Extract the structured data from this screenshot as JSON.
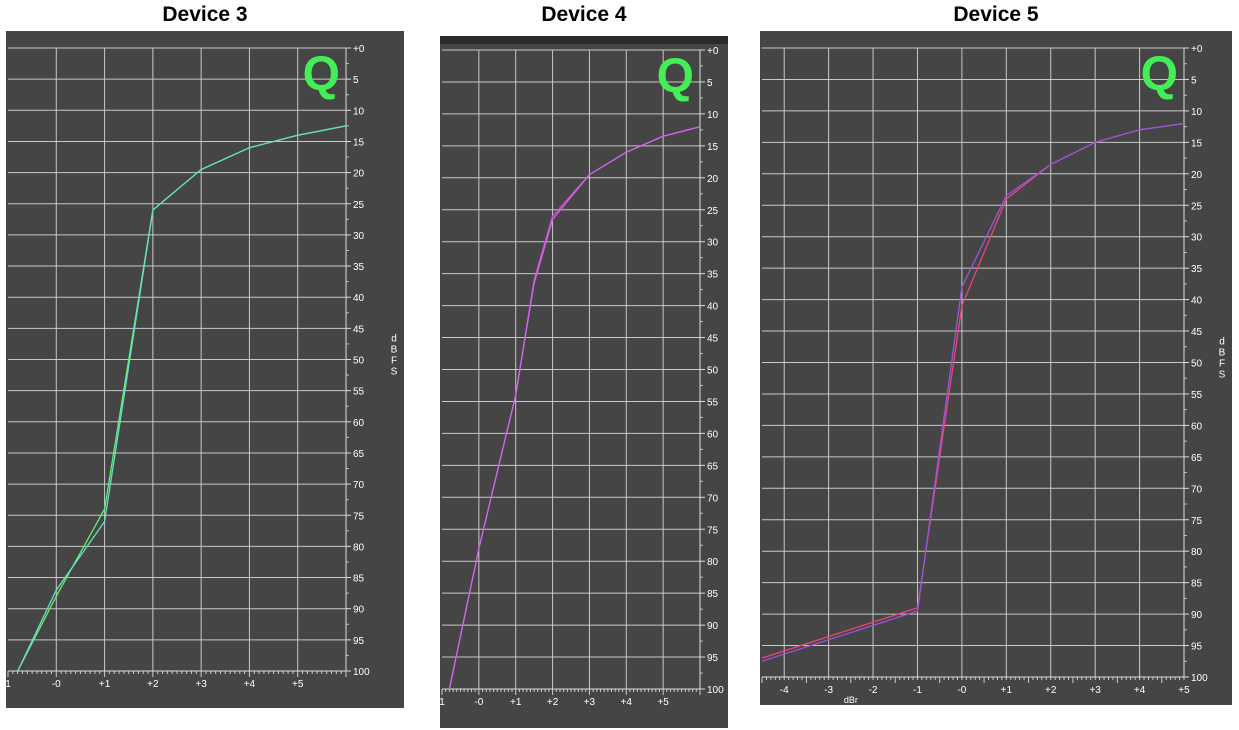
{
  "chart_data": [
    {
      "type": "line",
      "title": "Device 3",
      "ylabel": "dBFS",
      "xlabel": "",
      "x_ticks": [
        "1",
        "-0",
        "+1",
        "+2",
        "+3",
        "+4",
        "+5"
      ],
      "y_ticks": [
        "+0",
        "5",
        "10",
        "15",
        "20",
        "25",
        "30",
        "35",
        "40",
        "45",
        "50",
        "55",
        "60",
        "65",
        "70",
        "75",
        "80",
        "85",
        "90",
        "95",
        "100"
      ],
      "xlim": [
        -2,
        5
      ],
      "ylim": [
        0,
        100
      ],
      "grid": true,
      "logo": "Q",
      "logo_color": "#44ee55",
      "series": [
        {
          "color": "#66ee66",
          "x": [
            -1.8,
            -1,
            0,
            1,
            2,
            3,
            4,
            5
          ],
          "y": [
            100,
            88,
            74,
            26,
            19.5,
            16,
            14,
            12.5
          ]
        },
        {
          "color": "#66ddcc",
          "x": [
            -1.8,
            -1,
            0,
            1,
            2,
            3,
            4,
            5
          ],
          "y": [
            100,
            87,
            76,
            26,
            19.5,
            16,
            14,
            12.5
          ]
        }
      ]
    },
    {
      "type": "line",
      "title": "Device 4",
      "ylabel": "",
      "xlabel": "",
      "x_ticks": [
        "1",
        "-0",
        "+1",
        "+2",
        "+3",
        "+4",
        "+5"
      ],
      "y_ticks": [
        "+0",
        "5",
        "10",
        "15",
        "20",
        "25",
        "30",
        "35",
        "40",
        "45",
        "50",
        "55",
        "60",
        "65",
        "70",
        "75",
        "80",
        "85",
        "90",
        "95",
        "100"
      ],
      "xlim": [
        -2,
        5
      ],
      "ylim": [
        0,
        100
      ],
      "grid": true,
      "logo": "Q",
      "logo_color": "#44ee55",
      "series": [
        {
          "color": "#dd44cc",
          "x": [
            -1.8,
            -1,
            0,
            0.5,
            1,
            2,
            3,
            4,
            5
          ],
          "y": [
            100,
            78,
            54,
            36,
            26,
            19.5,
            16,
            13.5,
            12
          ]
        },
        {
          "color": "#cc66ee",
          "x": [
            -1.8,
            -1,
            0,
            0.5,
            1,
            2,
            3,
            4,
            5
          ],
          "y": [
            100,
            78,
            54,
            36.5,
            26.5,
            19.5,
            16,
            13.5,
            12
          ]
        }
      ]
    },
    {
      "type": "line",
      "title": "Device 5",
      "ylabel": "dBFS",
      "xlabel": "dBr",
      "x_ticks": [
        "-4",
        "-3",
        "-2",
        "-1",
        "-0",
        "+1",
        "+2",
        "+3",
        "+4",
        "+5"
      ],
      "y_ticks": [
        "+0",
        "5",
        "10",
        "15",
        "20",
        "25",
        "30",
        "35",
        "40",
        "45",
        "50",
        "55",
        "60",
        "65",
        "70",
        "75",
        "80",
        "85",
        "90",
        "95",
        "100"
      ],
      "xlim": [
        -4.5,
        5
      ],
      "ylim": [
        0,
        100
      ],
      "grid": true,
      "logo": "Q",
      "logo_color": "#44ee55",
      "series": [
        {
          "color": "#ee4477",
          "x": [
            -4.5,
            -1,
            0,
            1,
            2,
            3,
            4,
            5
          ],
          "y": [
            97,
            89,
            41,
            24,
            18.5,
            15,
            13,
            12
          ]
        },
        {
          "color": "#9955dd",
          "x": [
            -4.5,
            -1,
            0,
            1,
            2,
            3,
            4,
            5
          ],
          "y": [
            97.5,
            89.5,
            38,
            23.5,
            18.5,
            15,
            13,
            12
          ]
        }
      ]
    }
  ]
}
